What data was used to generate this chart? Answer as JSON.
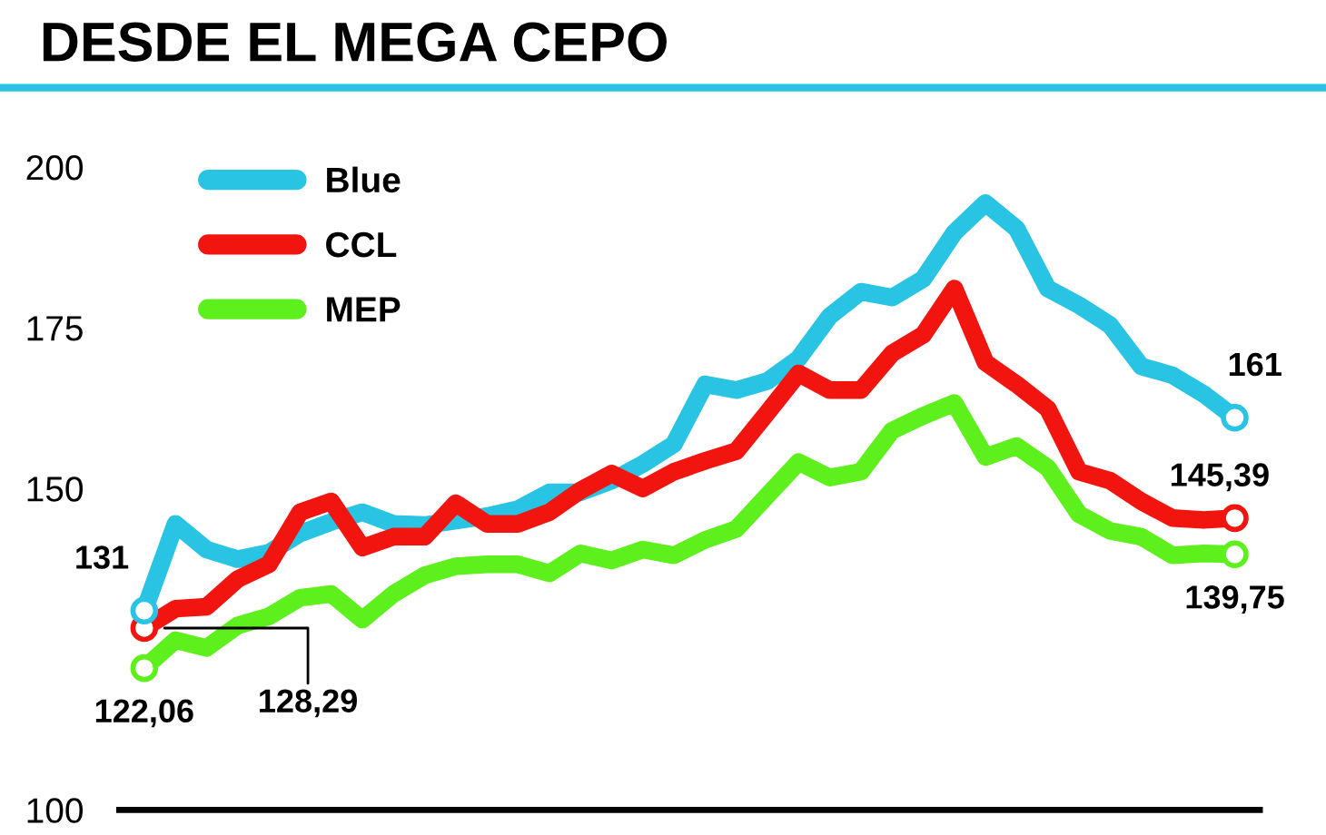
{
  "chart_data": {
    "type": "line",
    "title": "DESDE EL MEGA CEPO",
    "categories": [
      null,
      null,
      null,
      null,
      null,
      null,
      null,
      null,
      null,
      null,
      null,
      null,
      null,
      null,
      null,
      null,
      null,
      null,
      null,
      null,
      null,
      null,
      null,
      null,
      null,
      null,
      null,
      null,
      null,
      null,
      null,
      null,
      null,
      null,
      null,
      null
    ],
    "series": [
      {
        "name": "Blue",
        "color": "#29c3e3",
        "values": [
          131,
          144.5,
          140.5,
          139,
          140,
          143,
          144.8,
          146.3,
          144.5,
          144.3,
          145,
          145.7,
          146.8,
          149.4,
          149.4,
          151.2,
          153.8,
          156.9,
          166.2,
          165.3,
          166.7,
          170.2,
          176.8,
          180.6,
          179.7,
          182.6,
          189.8,
          194.4,
          190.4,
          181.1,
          178.5,
          175.4,
          169,
          167.6,
          164.7,
          161
        ],
        "value_labels": [
          "131",
          null,
          null,
          null,
          null,
          null,
          null,
          null,
          null,
          null,
          null,
          null,
          null,
          null,
          null,
          null,
          null,
          null,
          null,
          null,
          null,
          null,
          null,
          null,
          null,
          null,
          null,
          null,
          null,
          null,
          null,
          null,
          null,
          null,
          null,
          "161"
        ]
      },
      {
        "name": "CCL",
        "color": "#f2140f",
        "values": [
          128.29,
          131.3,
          131.6,
          135.9,
          138.2,
          146.3,
          148,
          140.8,
          142.5,
          142.5,
          147.7,
          144.5,
          144.5,
          146.3,
          149.7,
          152.3,
          150,
          152.6,
          154.3,
          155.8,
          161.8,
          167.9,
          165.3,
          165.3,
          171,
          173.9,
          181.1,
          169.6,
          166.2,
          162.4,
          152.6,
          151.2,
          148,
          145.4,
          145.1,
          145.39
        ],
        "value_labels": [
          "128,29",
          null,
          null,
          null,
          null,
          null,
          null,
          null,
          null,
          null,
          null,
          null,
          null,
          null,
          null,
          null,
          null,
          null,
          null,
          null,
          null,
          null,
          null,
          null,
          null,
          null,
          null,
          null,
          null,
          null,
          null,
          null,
          null,
          null,
          null,
          "145,39"
        ]
      },
      {
        "name": "MEP",
        "color": "#5ef01c",
        "values": [
          122.06,
          126.4,
          125.2,
          128.7,
          130.1,
          133,
          133.6,
          129.6,
          133.6,
          136.5,
          137.9,
          138.2,
          138.2,
          136.8,
          139.9,
          138.8,
          140.5,
          139.6,
          142,
          143.7,
          148.9,
          154.1,
          151.7,
          152.6,
          159,
          161.3,
          163.3,
          154.9,
          156.6,
          153.2,
          146,
          143.4,
          142.5,
          139.6,
          139.9,
          139.75
        ],
        "value_labels": [
          "122,06",
          null,
          null,
          null,
          null,
          null,
          null,
          null,
          null,
          null,
          null,
          null,
          null,
          null,
          null,
          null,
          null,
          null,
          null,
          null,
          null,
          null,
          null,
          null,
          null,
          null,
          null,
          null,
          null,
          null,
          null,
          null,
          null,
          null,
          null,
          "139,75"
        ]
      }
    ],
    "ylim": [
      100,
      200
    ],
    "yticks": [
      100,
      150,
      175,
      200
    ],
    "grid": false,
    "legend": "top left",
    "marker": "none",
    "line_style": "solid"
  }
}
